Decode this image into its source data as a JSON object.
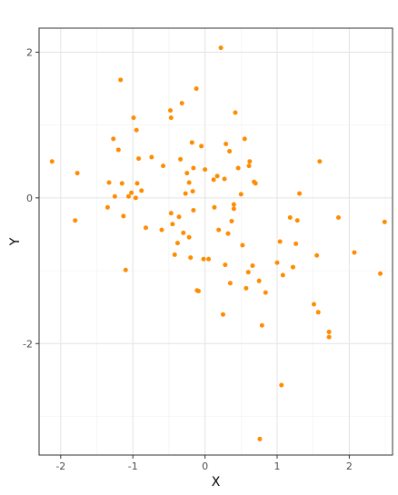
{
  "colors": {
    "point": "#FF8C00",
    "grid_major": "#E3E3E3",
    "grid_minor": "#F1F1F1",
    "panel_border": "#333333"
  },
  "chart_data": {
    "type": "scatter",
    "xlabel": "X",
    "ylabel": "Y",
    "xlim": [
      -2.3,
      2.6
    ],
    "ylim": [
      -3.53,
      2.33
    ],
    "xticks": [
      -2,
      -1,
      0,
      1,
      2
    ],
    "yticks": [
      -2,
      0,
      2
    ],
    "grid": true,
    "points": [
      [
        -2.12,
        0.5
      ],
      [
        -1.8,
        -0.31
      ],
      [
        -1.77,
        0.34
      ],
      [
        -1.35,
        -0.13
      ],
      [
        -1.33,
        0.21
      ],
      [
        -1.27,
        0.81
      ],
      [
        -1.25,
        0.02
      ],
      [
        -1.2,
        0.66
      ],
      [
        -1.17,
        1.62
      ],
      [
        -1.15,
        0.2
      ],
      [
        -1.13,
        -0.25
      ],
      [
        -1.1,
        -0.99
      ],
      [
        -1.06,
        0.02
      ],
      [
        -1.02,
        0.07
      ],
      [
        -0.99,
        1.1
      ],
      [
        -0.96,
        0.0
      ],
      [
        -0.94,
        0.2
      ],
      [
        -0.92,
        0.54
      ],
      [
        -0.95,
        0.93
      ],
      [
        -0.88,
        0.1
      ],
      [
        -0.82,
        -0.41
      ],
      [
        -0.74,
        0.56
      ],
      [
        -0.6,
        -0.44
      ],
      [
        -0.58,
        0.44
      ],
      [
        -0.48,
        1.2
      ],
      [
        -0.47,
        1.1
      ],
      [
        -0.47,
        -0.21
      ],
      [
        -0.45,
        -0.36
      ],
      [
        -0.42,
        -0.78
      ],
      [
        -0.38,
        -0.62
      ],
      [
        -0.36,
        -0.26
      ],
      [
        -0.34,
        0.53
      ],
      [
        -0.32,
        1.3
      ],
      [
        -0.3,
        -0.48
      ],
      [
        -0.27,
        0.06
      ],
      [
        -0.25,
        0.34
      ],
      [
        -0.22,
        0.21
      ],
      [
        -0.22,
        -0.54
      ],
      [
        -0.2,
        -0.82
      ],
      [
        -0.18,
        0.76
      ],
      [
        -0.17,
        0.09
      ],
      [
        -0.16,
        -0.17
      ],
      [
        -0.16,
        0.41
      ],
      [
        -0.12,
        1.5
      ],
      [
        -0.11,
        -1.27
      ],
      [
        -0.09,
        -1.28
      ],
      [
        -0.05,
        0.71
      ],
      [
        -0.02,
        -0.84
      ],
      [
        0.0,
        0.39
      ],
      [
        0.05,
        -0.84
      ],
      [
        0.12,
        0.25
      ],
      [
        0.13,
        -0.13
      ],
      [
        0.17,
        0.3
      ],
      [
        0.19,
        -0.44
      ],
      [
        0.22,
        2.06
      ],
      [
        0.25,
        -1.6
      ],
      [
        0.27,
        0.26
      ],
      [
        0.28,
        -0.92
      ],
      [
        0.29,
        0.74
      ],
      [
        0.32,
        -0.49
      ],
      [
        0.34,
        0.64
      ],
      [
        0.35,
        -1.17
      ],
      [
        0.37,
        -0.32
      ],
      [
        0.4,
        -0.09
      ],
      [
        0.4,
        -0.15
      ],
      [
        0.42,
        1.17
      ],
      [
        0.46,
        0.41
      ],
      [
        0.5,
        0.05
      ],
      [
        0.52,
        -0.65
      ],
      [
        0.55,
        0.81
      ],
      [
        0.57,
        -1.24
      ],
      [
        0.6,
        -1.02
      ],
      [
        0.61,
        0.44
      ],
      [
        0.62,
        0.5
      ],
      [
        0.66,
        -0.93
      ],
      [
        0.68,
        0.22
      ],
      [
        0.7,
        0.2
      ],
      [
        0.75,
        -1.14
      ],
      [
        0.76,
        -3.31
      ],
      [
        0.79,
        -1.75
      ],
      [
        0.84,
        -1.3
      ],
      [
        1.0,
        -0.89
      ],
      [
        1.04,
        -0.6
      ],
      [
        1.06,
        -2.57
      ],
      [
        1.08,
        -1.06
      ],
      [
        1.18,
        -0.27
      ],
      [
        1.22,
        -0.95
      ],
      [
        1.26,
        -0.63
      ],
      [
        1.28,
        -0.31
      ],
      [
        1.31,
        0.06
      ],
      [
        1.51,
        -1.46
      ],
      [
        1.55,
        -0.79
      ],
      [
        1.57,
        -1.57
      ],
      [
        1.59,
        0.5
      ],
      [
        1.72,
        -1.84
      ],
      [
        1.72,
        -1.91
      ],
      [
        1.85,
        -0.27
      ],
      [
        2.07,
        -0.75
      ],
      [
        2.43,
        -1.04
      ],
      [
        2.49,
        -0.33
      ]
    ]
  }
}
